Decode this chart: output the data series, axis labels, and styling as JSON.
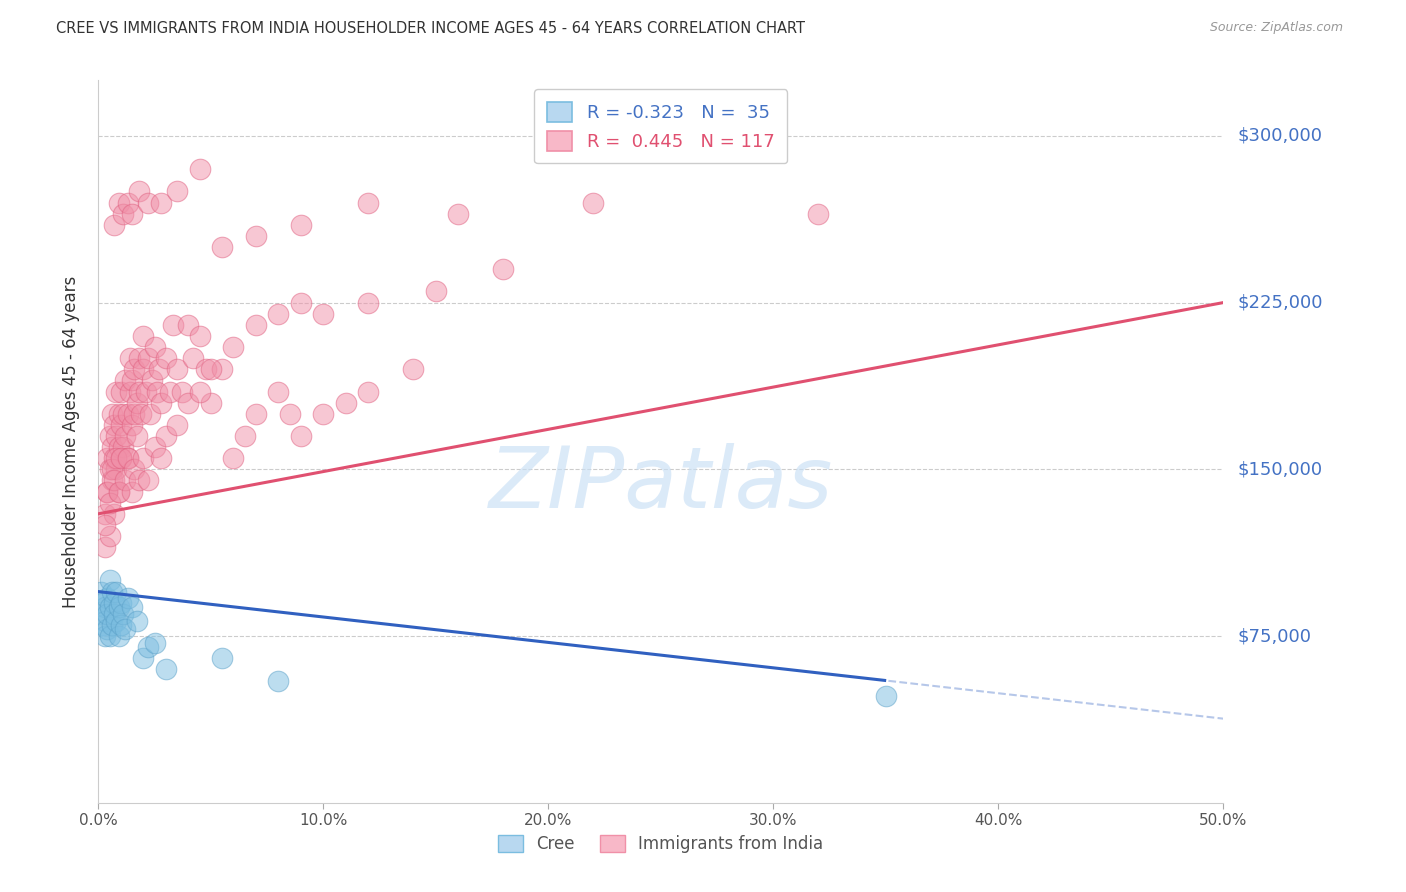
{
  "title": "CREE VS IMMIGRANTS FROM INDIA HOUSEHOLDER INCOME AGES 45 - 64 YEARS CORRELATION CHART",
  "source": "Source: ZipAtlas.com",
  "ylabel": "Householder Income Ages 45 - 64 years",
  "ytick_labels": [
    "$75,000",
    "$150,000",
    "$225,000",
    "$300,000"
  ],
  "ytick_vals": [
    75000,
    150000,
    225000,
    300000
  ],
  "ylim": [
    0,
    325000
  ],
  "xlim": [
    0.0,
    0.5
  ],
  "xlabel_ticks": [
    "0.0%",
    "10.0%",
    "20.0%",
    "30.0%",
    "40.0%",
    "50.0%"
  ],
  "xlabel_vals": [
    0.0,
    0.1,
    0.2,
    0.3,
    0.4,
    0.5
  ],
  "legend1_text": "R = -0.323   N =  35",
  "legend2_text": "R =  0.445   N = 117",
  "legend1_color": "#4472c4",
  "legend2_color": "#e05070",
  "cree_color": "#7bbde0",
  "cree_edge": "#5aa0c8",
  "india_color": "#f090a8",
  "india_edge": "#e06080",
  "cree_line_color": "#3060c0",
  "india_line_color": "#e05070",
  "watermark_color": "#c8dff5",
  "grid_color": "#cccccc",
  "title_color": "#333333",
  "ytick_color": "#4472c4",
  "background_color": "#ffffff",
  "cree_x": [
    0.001,
    0.001,
    0.002,
    0.002,
    0.003,
    0.003,
    0.003,
    0.004,
    0.004,
    0.004,
    0.005,
    0.005,
    0.005,
    0.006,
    0.006,
    0.007,
    0.007,
    0.008,
    0.008,
    0.009,
    0.009,
    0.01,
    0.01,
    0.011,
    0.012,
    0.013,
    0.015,
    0.017,
    0.02,
    0.022,
    0.025,
    0.03,
    0.055,
    0.08,
    0.35
  ],
  "cree_y": [
    95000,
    85000,
    80000,
    90000,
    88000,
    82000,
    75000,
    92000,
    78000,
    85000,
    100000,
    88000,
    75000,
    95000,
    80000,
    90000,
    85000,
    82000,
    95000,
    88000,
    75000,
    90000,
    80000,
    85000,
    78000,
    92000,
    88000,
    82000,
    65000,
    70000,
    72000,
    60000,
    65000,
    55000,
    48000
  ],
  "india_x": [
    0.003,
    0.003,
    0.004,
    0.004,
    0.005,
    0.005,
    0.005,
    0.006,
    0.006,
    0.006,
    0.007,
    0.007,
    0.007,
    0.008,
    0.008,
    0.008,
    0.009,
    0.009,
    0.009,
    0.01,
    0.01,
    0.01,
    0.011,
    0.011,
    0.012,
    0.012,
    0.013,
    0.013,
    0.014,
    0.014,
    0.015,
    0.015,
    0.016,
    0.016,
    0.017,
    0.017,
    0.018,
    0.018,
    0.019,
    0.02,
    0.02,
    0.021,
    0.022,
    0.023,
    0.024,
    0.025,
    0.026,
    0.027,
    0.028,
    0.03,
    0.032,
    0.033,
    0.035,
    0.037,
    0.04,
    0.042,
    0.045,
    0.048,
    0.05,
    0.055,
    0.06,
    0.065,
    0.07,
    0.08,
    0.085,
    0.09,
    0.1,
    0.11,
    0.12,
    0.14,
    0.003,
    0.004,
    0.005,
    0.006,
    0.007,
    0.008,
    0.009,
    0.01,
    0.012,
    0.013,
    0.015,
    0.016,
    0.018,
    0.02,
    0.022,
    0.025,
    0.028,
    0.03,
    0.035,
    0.04,
    0.045,
    0.05,
    0.06,
    0.07,
    0.08,
    0.09,
    0.1,
    0.12,
    0.15,
    0.18,
    0.007,
    0.009,
    0.011,
    0.013,
    0.015,
    0.018,
    0.022,
    0.028,
    0.035,
    0.045,
    0.055,
    0.07,
    0.09,
    0.12,
    0.16,
    0.22,
    0.32
  ],
  "india_y": [
    115000,
    130000,
    140000,
    155000,
    120000,
    150000,
    165000,
    145000,
    160000,
    175000,
    130000,
    155000,
    170000,
    150000,
    165000,
    185000,
    140000,
    160000,
    175000,
    155000,
    170000,
    185000,
    160000,
    175000,
    165000,
    190000,
    155000,
    175000,
    185000,
    200000,
    170000,
    190000,
    175000,
    195000,
    180000,
    165000,
    185000,
    200000,
    175000,
    195000,
    210000,
    185000,
    200000,
    175000,
    190000,
    205000,
    185000,
    195000,
    180000,
    200000,
    185000,
    215000,
    195000,
    185000,
    215000,
    200000,
    210000,
    195000,
    180000,
    195000,
    155000,
    165000,
    175000,
    185000,
    175000,
    165000,
    175000,
    180000,
    185000,
    195000,
    125000,
    140000,
    135000,
    150000,
    145000,
    155000,
    140000,
    155000,
    145000,
    155000,
    140000,
    150000,
    145000,
    155000,
    145000,
    160000,
    155000,
    165000,
    170000,
    180000,
    185000,
    195000,
    205000,
    215000,
    220000,
    225000,
    220000,
    225000,
    230000,
    240000,
    260000,
    270000,
    265000,
    270000,
    265000,
    275000,
    270000,
    270000,
    275000,
    285000,
    250000,
    255000,
    260000,
    270000,
    265000,
    270000,
    265000
  ]
}
